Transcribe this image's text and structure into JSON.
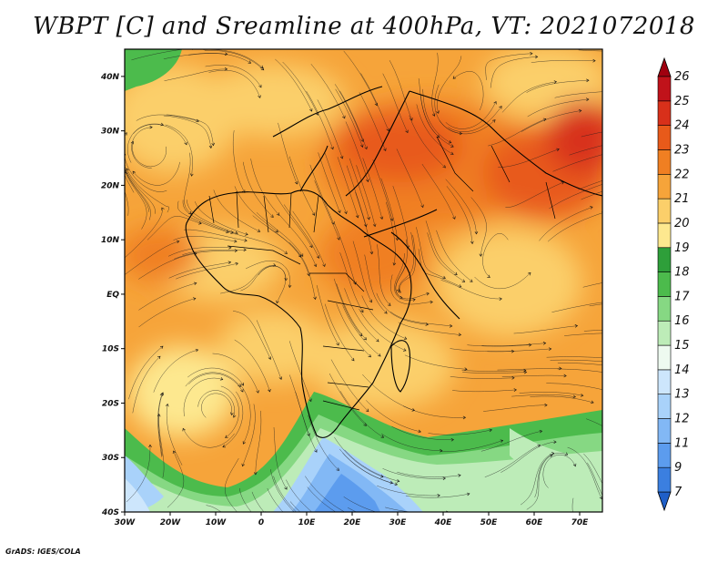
{
  "title": "WBPT [C] and Sreamline at 400hPa, VT: 2021072018",
  "credit": "GrADS: IGES/COLA",
  "map": {
    "variable": "Wet-bulb potential temperature (WBPT) with streamlines",
    "level": "400hPa",
    "valid_time": "2021072018",
    "lon_range": [
      -30,
      75
    ],
    "lat_range": [
      -40,
      45
    ],
    "x_ticks": [
      "30W",
      "20W",
      "10W",
      "0",
      "10E",
      "20E",
      "30E",
      "40E",
      "50E",
      "60E",
      "70E"
    ],
    "y_ticks": [
      "40N",
      "30N",
      "20N",
      "10N",
      "EQ",
      "10S",
      "20S",
      "30S",
      "40S"
    ]
  },
  "colorbar": {
    "labels": [
      "7",
      "9",
      "11",
      "12",
      "13",
      "14",
      "15",
      "16",
      "17",
      "18",
      "19",
      "20",
      "21",
      "22",
      "23",
      "24",
      "25",
      "26"
    ],
    "colors": [
      "#1f5fc8",
      "#3b7fe0",
      "#5c9cee",
      "#82b8f5",
      "#a9d2fa",
      "#cde6fc",
      "#eefaf0",
      "#bdecb8",
      "#86d883",
      "#4cbb4c",
      "#2e9f3a",
      "#fde88f",
      "#fbcf6a",
      "#f6a43a",
      "#f07f22",
      "#e85a1a",
      "#d8301a",
      "#c0121a",
      "#a0000f"
    ]
  }
}
